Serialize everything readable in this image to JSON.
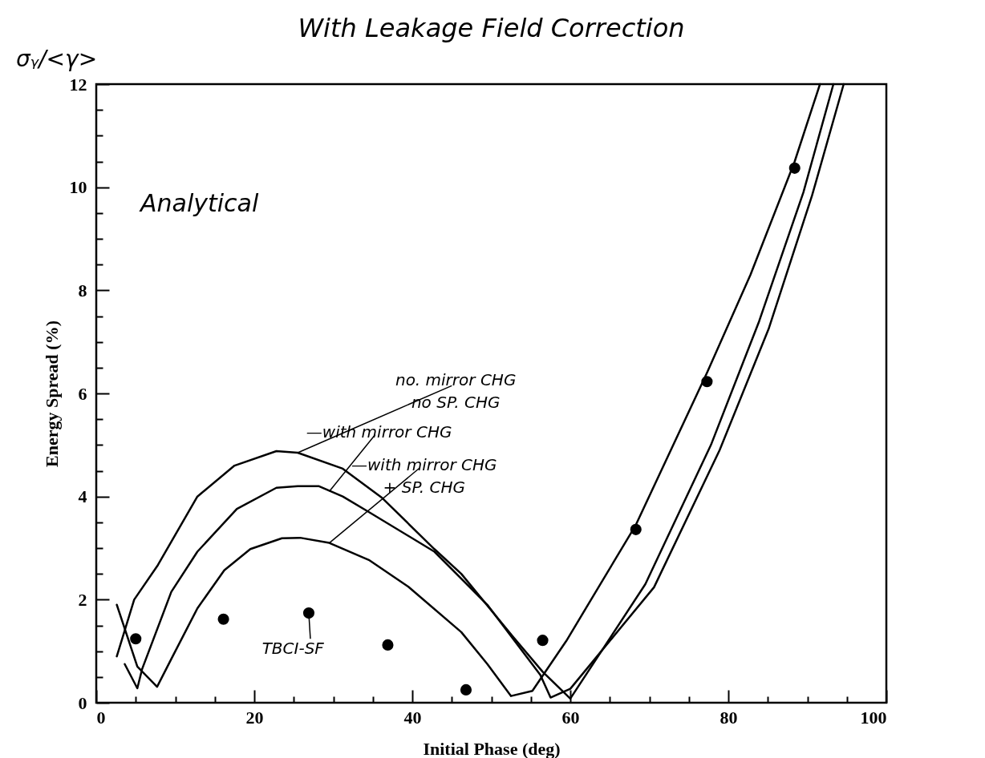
{
  "chart_data": {
    "type": "line",
    "title": "With Leakage Field Correction",
    "xlabel": "Initial Phase (deg)",
    "ylabel": "Energy Spread (%)",
    "xlim": [
      0,
      100
    ],
    "ylim": [
      0,
      12
    ],
    "xticks": [
      0,
      {
        "value": 5,
        "label": null
      },
      {
        "value": 10,
        "label": null
      },
      {
        "value": 15,
        "label": null
      },
      20,
      {
        "value": 25,
        "label": null
      },
      {
        "value": 30,
        "label": null
      },
      {
        "value": 35,
        "label": null
      },
      40,
      {
        "value": 45,
        "label": null
      },
      {
        "value": 50,
        "label": null
      },
      {
        "value": 55,
        "label": null
      },
      60,
      {
        "value": 65,
        "label": null
      },
      {
        "value": 70,
        "label": null
      },
      {
        "value": 75,
        "label": null
      },
      80,
      {
        "value": 85,
        "label": null
      },
      {
        "value": 90,
        "label": null
      },
      {
        "value": 95,
        "label": null
      },
      100
    ],
    "yticks": [
      0,
      {
        "value": 0.5,
        "label": null
      },
      {
        "value": 1,
        "label": null
      },
      {
        "value": 1.5,
        "label": null
      },
      2,
      {
        "value": 2.5,
        "label": null
      },
      {
        "value": 3,
        "label": null
      },
      {
        "value": 3.5,
        "label": null
      },
      4,
      {
        "value": 4.5,
        "label": null
      },
      {
        "value": 5,
        "label": null
      },
      {
        "value": 5.5,
        "label": null
      },
      6,
      {
        "value": 6.5,
        "label": null
      },
      {
        "value": 7,
        "label": null
      },
      {
        "value": 7.5,
        "label": null
      },
      8,
      {
        "value": 8.5,
        "label": null
      },
      {
        "value": 9,
        "label": null
      },
      {
        "value": 9.5,
        "label": null
      },
      10,
      {
        "value": 10.5,
        "label": null
      },
      {
        "value": 11,
        "label": null
      },
      {
        "value": 11.5,
        "label": null
      },
      12
    ],
    "grid": false,
    "line_style": "solid",
    "series": [
      {
        "color": "#000000",
        "x": [
          2.6,
          4.8,
          7.8,
          12.8,
          17.5,
          22.8,
          25.5,
          31.2,
          36.2,
          42.8,
          46.2,
          52.8,
          56.5,
          60,
          69.5,
          77.8,
          83.9,
          89.5,
          93.3
        ],
        "values": [
          0.9,
          2.0,
          2.67,
          4.0,
          4.6,
          4.88,
          4.85,
          4.54,
          3.97,
          2.98,
          2.5,
          1.27,
          0.6,
          0.08,
          2.3,
          5.0,
          7.4,
          9.9,
          12
        ]
      },
      {
        "color": "#000000",
        "x": [
          3.6,
          5.2,
          5.8,
          9.5,
          12.8,
          17.8,
          22.8,
          25.5,
          28.2,
          31.2,
          34.5,
          42.8,
          49.5,
          56.2,
          57.5,
          60,
          70.6,
          78.9,
          85.1,
          90.6,
          94.6
        ],
        "values": [
          0.75,
          0.28,
          0.65,
          2.15,
          2.93,
          3.76,
          4.17,
          4.2,
          4.2,
          4.0,
          3.7,
          2.93,
          1.9,
          0.54,
          0.1,
          0.27,
          2.24,
          4.9,
          7.25,
          9.84,
          12
        ]
      },
      {
        "color": "#000000",
        "x": [
          2.6,
          5.2,
          7.7,
          9.5,
          12.8,
          16.2,
          19.5,
          23.5,
          25.8,
          29.5,
          34.5,
          39.5,
          46.2,
          49.5,
          52.5,
          55.2,
          59.5,
          68.3,
          77.3,
          82.8,
          88.4,
          91.6
        ],
        "values": [
          1.9,
          0.7,
          0.31,
          0.85,
          1.83,
          2.57,
          2.98,
          3.19,
          3.2,
          3.1,
          2.77,
          2.25,
          1.37,
          0.75,
          0.13,
          0.23,
          1.2,
          3.45,
          6.4,
          8.3,
          10.5,
          12
        ]
      },
      {
        "type": "scatter",
        "color": "#000000",
        "x": [
          5.0,
          16.1,
          26.9,
          36.9,
          46.8,
          56.5,
          68.3,
          77.3,
          88.4
        ],
        "values": [
          1.24,
          1.62,
          1.74,
          1.12,
          0.25,
          1.21,
          3.36,
          6.23,
          10.37
        ]
      }
    ],
    "annotations": [
      {
        "text": "no. mirror CHG\nno SP. CHG",
        "x": 25.5,
        "y": 4.85
      },
      {
        "text": "—with mirror CHG",
        "x": 29.5,
        "y": 4.1
      },
      {
        "text": "—with mirror CHG\n   + SP. CHG",
        "x": 29.5,
        "y": 3.1
      },
      {
        "text": "TBCI-SF",
        "x": 26.9,
        "y": 1.74
      },
      "Analytical",
      "σᵧ/<γ>"
    ]
  }
}
